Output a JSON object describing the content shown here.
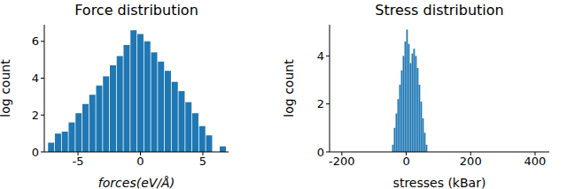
{
  "chart_data": [
    {
      "type": "histogram",
      "title": "Force distribution",
      "x_label": "forces(eV/Å)",
      "y_label": "log count",
      "color": "#1f77b4",
      "bins": [
        -7.4,
        -6.85,
        -6.3,
        -5.75,
        -5.2,
        -4.65,
        -4.1,
        -3.55,
        -3.0,
        -2.45,
        -1.9,
        -1.35,
        -0.8,
        -0.25,
        0.3,
        0.85,
        1.4,
        1.95,
        2.5,
        3.05,
        3.6,
        4.15,
        4.7,
        5.25,
        5.8,
        6.35,
        6.9
      ],
      "values": [
        0.5,
        1.0,
        1.1,
        1.6,
        2.1,
        2.6,
        3.1,
        3.6,
        4.1,
        4.7,
        5.2,
        5.8,
        6.6,
        6.4,
        6.0,
        5.4,
        4.9,
        4.4,
        3.8,
        3.3,
        2.7,
        2.1,
        1.4,
        0.9,
        0,
        0.3
      ],
      "xlim": [
        -7.7,
        7.06
      ],
      "xticks": [
        -5,
        0,
        5
      ],
      "ylim": [
        0,
        6.9
      ],
      "yticks": [
        0,
        2,
        4,
        6
      ]
    },
    {
      "type": "histogram",
      "title": "Stress distribution",
      "x_label": "stresses (kBar)",
      "y_label": "log count",
      "color": "#1f77b4",
      "bins": [
        -44,
        -38.5,
        -33,
        -27.5,
        -22,
        -16.5,
        -11,
        -5.5,
        0,
        5.5,
        11,
        16.5,
        22,
        27.5,
        33,
        38.5,
        44,
        49.5,
        55,
        60.5,
        66
      ],
      "values": [
        0.3,
        1.0,
        1.6,
        2.2,
        2.8,
        3.4,
        4.0,
        4.6,
        5.1,
        4.5,
        3.7,
        4.1,
        4.3,
        4.0,
        3.5,
        2.8,
        2.1,
        1.4,
        0.8,
        0.3
      ],
      "xlim": [
        -238,
        444
      ],
      "xticks": [
        -200,
        0,
        200,
        400
      ],
      "ylim": [
        0,
        5.3
      ],
      "yticks": [
        0,
        2,
        4
      ]
    }
  ]
}
